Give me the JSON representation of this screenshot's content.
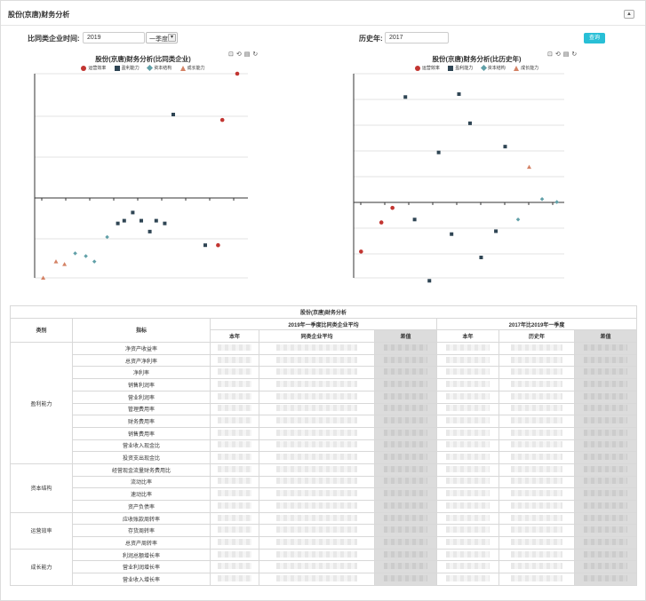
{
  "panel": {
    "title": "股份(京唐)财务分析",
    "collapse_icon": "chevron-up-icon"
  },
  "filters": {
    "peer_label": "比同类企业时间:",
    "peer_year": "2019",
    "peer_quarter": "一季度",
    "history_label": "历史年:",
    "history_year": "2017",
    "query_label": "查询"
  },
  "charts": {
    "tools": [
      "crop-icon",
      "undo-icon",
      "data-view-icon",
      "refresh-icon"
    ],
    "legend": [
      "运营效率",
      "盈利能力",
      "资本结构",
      "成长能力"
    ],
    "colors": {
      "运营效率": "#c23531",
      "盈利能力": "#2f4554",
      "资本结构": "#61a0a8",
      "成长能力": "#d48265"
    }
  },
  "chart_data": [
    {
      "type": "scatter",
      "title": "股份(京唐)财务分析(比同类企业)",
      "series": [
        {
          "name": "运营效率",
          "points": [
            [
              0.88,
              0.38
            ],
            [
              0.95,
              0.55
            ],
            [
              0.86,
              -0.08
            ]
          ]
        },
        {
          "name": "盈利能力",
          "points": [
            [
              0.39,
              0.0
            ],
            [
              0.42,
              0.01
            ],
            [
              0.46,
              0.04
            ],
            [
              0.5,
              0.01
            ],
            [
              0.54,
              -0.03
            ],
            [
              0.57,
              0.01
            ],
            [
              0.61,
              0.0
            ],
            [
              0.65,
              0.4
            ],
            [
              0.8,
              -0.08
            ],
            [
              0.71,
              -0.27
            ]
          ]
        },
        {
          "name": "资本结构",
          "points": [
            [
              0.19,
              -0.11
            ],
            [
              0.24,
              -0.12
            ],
            [
              0.28,
              -0.14
            ],
            [
              0.34,
              -0.05
            ]
          ]
        },
        {
          "name": "成长能力",
          "points": [
            [
              0.04,
              -0.2
            ],
            [
              0.1,
              -0.14
            ],
            [
              0.14,
              -0.15
            ]
          ]
        }
      ]
    },
    {
      "type": "scatter",
      "title": "股份(京唐)财务分析(比历史年)",
      "series": [
        {
          "name": "运营效率",
          "points": [
            [
              0.02,
              -0.11
            ],
            [
              0.13,
              -0.01
            ],
            [
              0.19,
              0.04
            ]
          ]
        },
        {
          "name": "盈利能力",
          "points": [
            [
              0.26,
              0.42
            ],
            [
              0.31,
              0.0
            ],
            [
              0.39,
              -0.21
            ],
            [
              0.44,
              0.23
            ],
            [
              0.51,
              -0.05
            ],
            [
              0.55,
              0.43
            ],
            [
              0.61,
              0.33
            ],
            [
              0.67,
              -0.13
            ],
            [
              0.75,
              -0.04
            ],
            [
              0.8,
              0.25
            ]
          ]
        },
        {
          "name": "资本结构",
          "points": [
            [
              0.87,
              0.0
            ],
            [
              1.0,
              0.07
            ],
            [
              1.08,
              0.06
            ]
          ]
        },
        {
          "name": "成长能力",
          "points": [
            [
              0.93,
              0.18
            ]
          ]
        }
      ]
    }
  ],
  "table": {
    "caption": "股份(京唐)财务分析",
    "col_category": "类别",
    "col_indicator": "指标",
    "group1": "2019年一季度比同类企业平均",
    "group2": "2017年比2019年一季度",
    "g1_cols": [
      "本年",
      "同类企业平均",
      "差值"
    ],
    "g2_cols": [
      "本年",
      "历史年",
      "差值"
    ],
    "groups": [
      {
        "name": "盈利能力",
        "items": [
          "净资产收益率",
          "总资产净利率",
          "净利率",
          "销售利润率",
          "营业利润率",
          "管理费用率",
          "财务费用率",
          "销售费用率",
          "营业收入现金比",
          "投资支出现金比"
        ]
      },
      {
        "name": "资本结构",
        "items": [
          "经营现金流量财务费用比",
          "流动比率",
          "速动比率",
          "资产负债率"
        ]
      },
      {
        "name": "运营效率",
        "items": [
          "应收账款周转率",
          "存货周转率",
          "总资产周转率"
        ]
      },
      {
        "name": "成长能力",
        "items": [
          "利润总额增长率",
          "营业利润增长率",
          "营业收入增长率"
        ]
      }
    ]
  }
}
